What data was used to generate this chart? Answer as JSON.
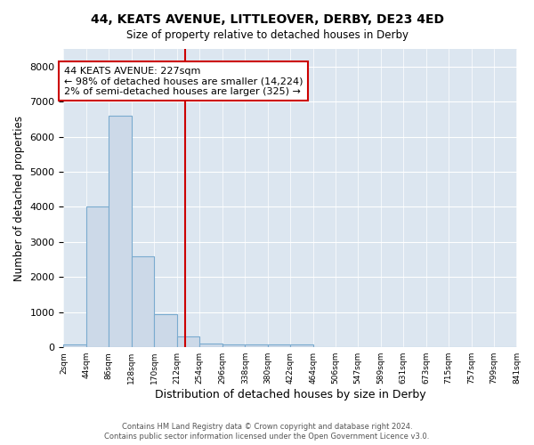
{
  "title": "44, KEATS AVENUE, LITTLEOVER, DERBY, DE23 4ED",
  "subtitle": "Size of property relative to detached houses in Derby",
  "xlabel": "Distribution of detached houses by size in Derby",
  "ylabel": "Number of detached properties",
  "bar_color": "#ccd9e8",
  "bar_edge_color": "#7aabcf",
  "property_line_x": 227,
  "property_line_color": "#cc0000",
  "annotation_text": "44 KEATS AVENUE: 227sqm\n← 98% of detached houses are smaller (14,224)\n2% of semi-detached houses are larger (325) →",
  "annotation_box_color": "#cc0000",
  "annotation_text_color": "black",
  "footnote1": "Contains HM Land Registry data © Crown copyright and database right 2024.",
  "footnote2": "Contains public sector information licensed under the Open Government Licence v3.0.",
  "bin_edges": [
    2,
    44,
    86,
    128,
    170,
    212,
    254,
    296,
    338,
    380,
    422,
    464,
    506,
    547,
    589,
    631,
    673,
    715,
    757,
    799,
    841
  ],
  "bin_heights": [
    75,
    4000,
    6600,
    2600,
    950,
    300,
    110,
    80,
    80,
    75,
    80,
    0,
    0,
    0,
    0,
    0,
    0,
    0,
    0,
    0
  ],
  "ylim": [
    0,
    8500
  ],
  "yticks": [
    0,
    1000,
    2000,
    3000,
    4000,
    5000,
    6000,
    7000,
    8000
  ],
  "fig_bg_color": "#ffffff",
  "plot_bg_color": "#dce6f0"
}
